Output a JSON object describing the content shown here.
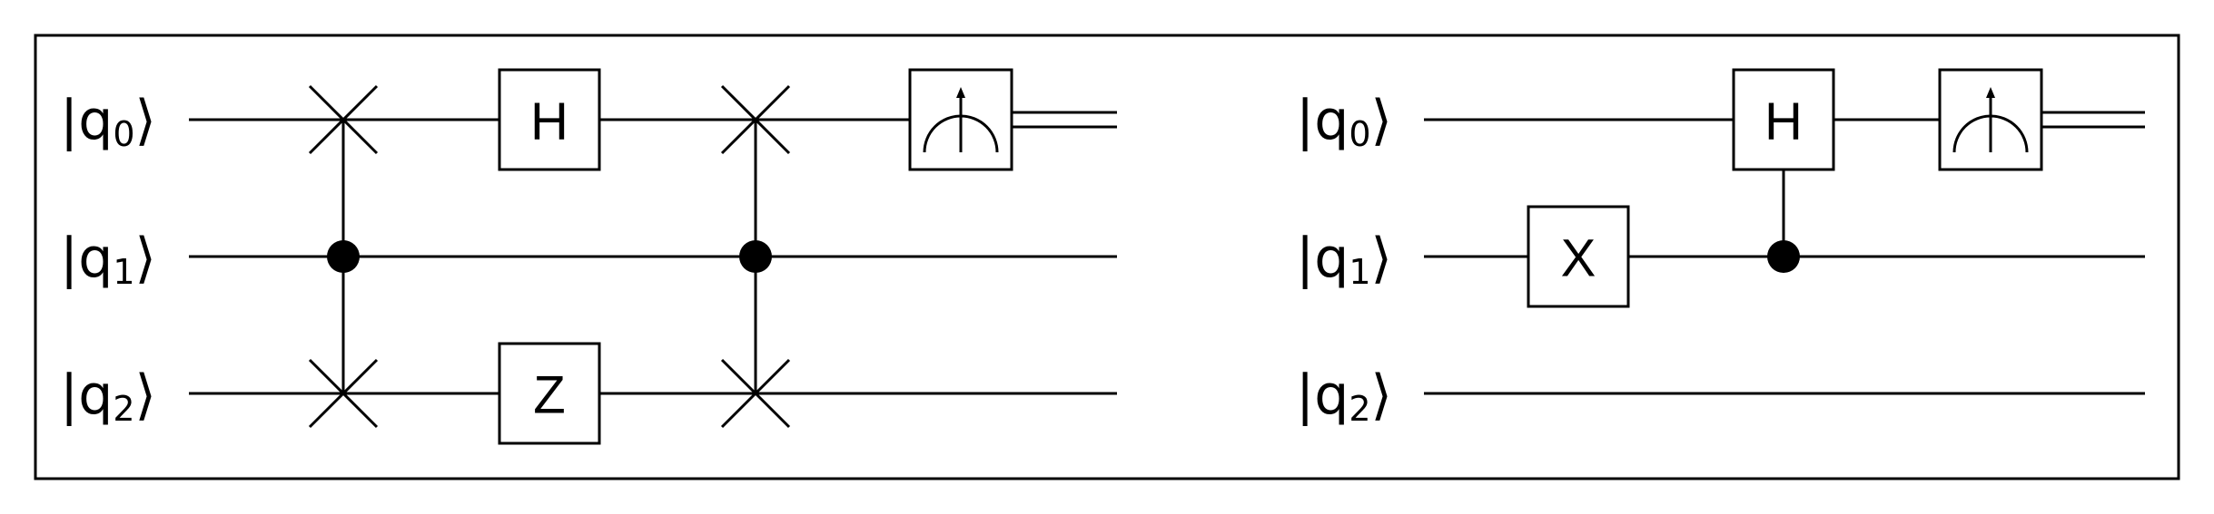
{
  "circuits": [
    {
      "qubit_labels": [
        {
          "ket": "|q",
          "index": "0",
          "close": "⟩"
        },
        {
          "ket": "|q",
          "index": "1",
          "close": "⟩"
        },
        {
          "ket": "|q",
          "index": "2",
          "close": "⟩"
        }
      ],
      "gates": [
        {
          "label": "H"
        },
        {
          "label": "Z"
        }
      ]
    },
    {
      "qubit_labels": [
        {
          "ket": "|q",
          "index": "0",
          "close": "⟩"
        },
        {
          "ket": "|q",
          "index": "1",
          "close": "⟩"
        },
        {
          "ket": "|q",
          "index": "2",
          "close": "⟩"
        }
      ],
      "gates": [
        {
          "label": "X"
        },
        {
          "label": "H"
        }
      ]
    }
  ]
}
